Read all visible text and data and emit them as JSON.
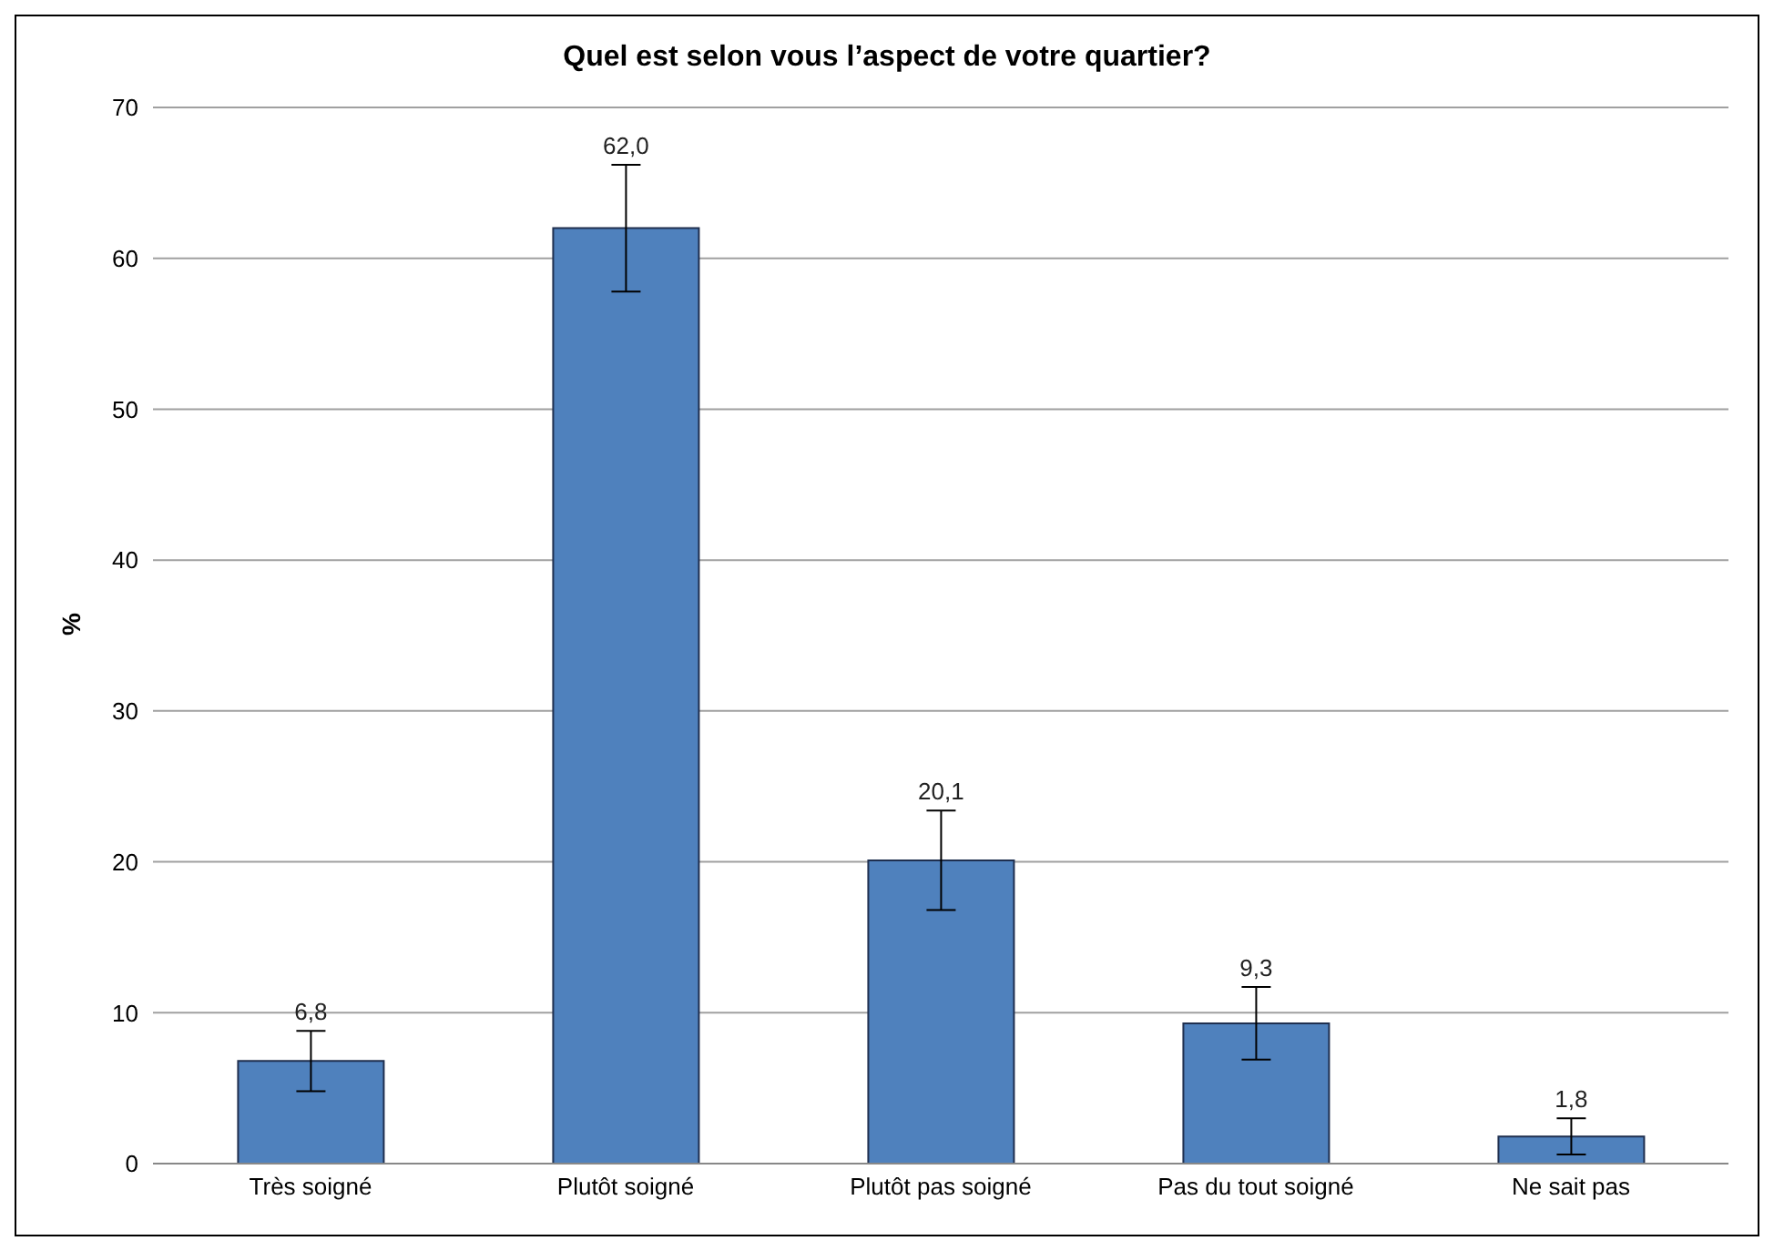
{
  "chart_data": {
    "type": "bar",
    "title": "Quel est selon vous l’aspect de votre quartier?",
    "ylabel": "%",
    "categories": [
      "Très soigné",
      "Plutôt soigné",
      "Plutôt pas soigné",
      "Pas du tout soigné",
      "Ne sait pas"
    ],
    "values": [
      6.8,
      62.0,
      20.1,
      9.3,
      1.8
    ],
    "value_labels": [
      "6,8",
      "62,0",
      "20,1",
      "9,3",
      "1,8"
    ],
    "errors": [
      2.0,
      4.2,
      3.3,
      2.4,
      1.2
    ],
    "color": "#4f81bd",
    "ylim": [
      0,
      70
    ],
    "yticks": [
      0,
      10,
      20,
      30,
      40,
      50,
      60,
      70
    ],
    "grid": "y"
  }
}
